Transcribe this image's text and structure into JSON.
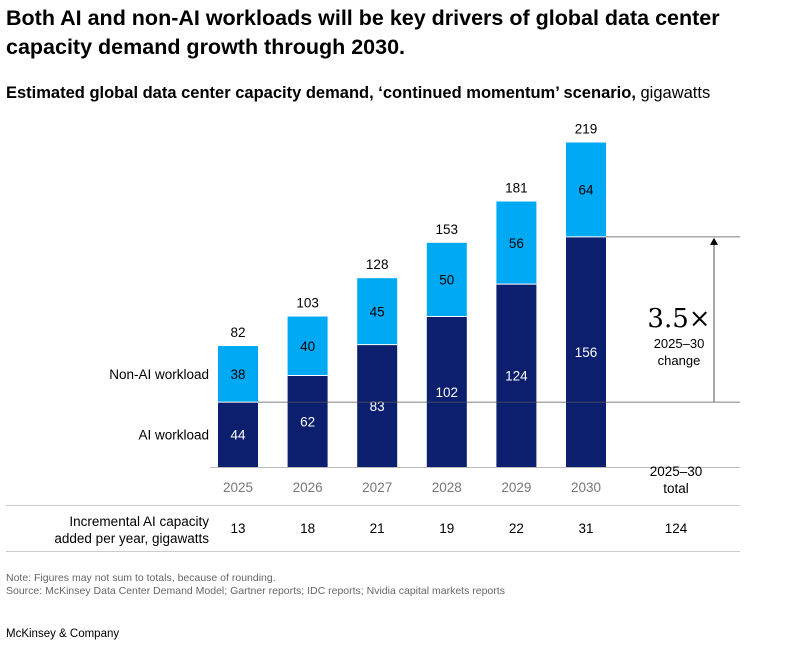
{
  "title": "Both AI and non-AI workloads will be key drivers of global data center capacity demand growth through 2030.",
  "subtitle_bold": "Estimated global data center capacity demand, ‘continued momentum’ scenario,",
  "subtitle_unit": " gigawatts",
  "colors": {
    "ai": "#0b1f6e",
    "non_ai": "#00a9f4",
    "axis_text": "#777777",
    "rule": "#cccccc"
  },
  "chart_data": {
    "type": "bar",
    "stacked": true,
    "categories": [
      "2025",
      "2026",
      "2027",
      "2028",
      "2029",
      "2030"
    ],
    "series": [
      {
        "name": "AI workload",
        "values": [
          44,
          62,
          83,
          102,
          124,
          156
        ]
      },
      {
        "name": "Non-AI workload",
        "values": [
          38,
          40,
          45,
          50,
          56,
          64
        ]
      }
    ],
    "totals": [
      82,
      103,
      128,
      153,
      181,
      219
    ],
    "annotation": {
      "value": "3.5×",
      "label_line1": "2025–30",
      "label_line2": "change"
    },
    "total_column_header": [
      "2025–30",
      "total"
    ],
    "incremental": {
      "label_line1": "Incremental AI capacity",
      "label_line2": "added per year, gigawatts",
      "values": [
        "13",
        "18",
        "21",
        "19",
        "22",
        "31"
      ],
      "total": "124"
    }
  },
  "note": "Note: Figures may not sum to totals, because of rounding.",
  "source": "Source: McKinsey Data Center Demand Model; Gartner reports; IDC reports; Nvidia capital markets reports",
  "brand": "McKinsey & Company"
}
